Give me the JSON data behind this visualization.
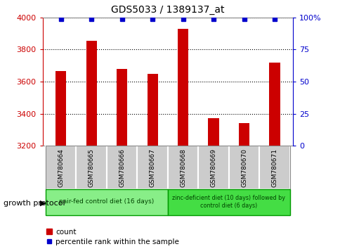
{
  "title": "GDS5033 / 1389137_at",
  "samples": [
    "GSM780664",
    "GSM780665",
    "GSM780666",
    "GSM780667",
    "GSM780668",
    "GSM780669",
    "GSM780670",
    "GSM780671"
  ],
  "counts": [
    3665,
    3855,
    3680,
    3650,
    3930,
    3370,
    3340,
    3720
  ],
  "percentiles": [
    99,
    99,
    99,
    99,
    99,
    99,
    99,
    99
  ],
  "ylim_left": [
    3200,
    4000
  ],
  "ylim_right": [
    0,
    100
  ],
  "yticks_left": [
    3200,
    3400,
    3600,
    3800,
    4000
  ],
  "yticks_right": [
    0,
    25,
    50,
    75,
    100
  ],
  "bar_color": "#cc0000",
  "dot_color": "#0000cc",
  "group1_label": "pair-fed control diet (16 days)",
  "group2_label": "zinc-deficient diet (10 days) followed by\ncontrol diet (6 days)",
  "group1_color": "#88ee88",
  "group2_color": "#44dd44",
  "group_row_label": "growth protocol",
  "legend_count_label": "count",
  "legend_pct_label": "percentile rank within the sample",
  "grid_color": "#000000",
  "sample_box_color": "#cccccc",
  "right_axis_color": "#0000cc",
  "left_axis_color": "#cc0000",
  "bar_width": 0.35
}
